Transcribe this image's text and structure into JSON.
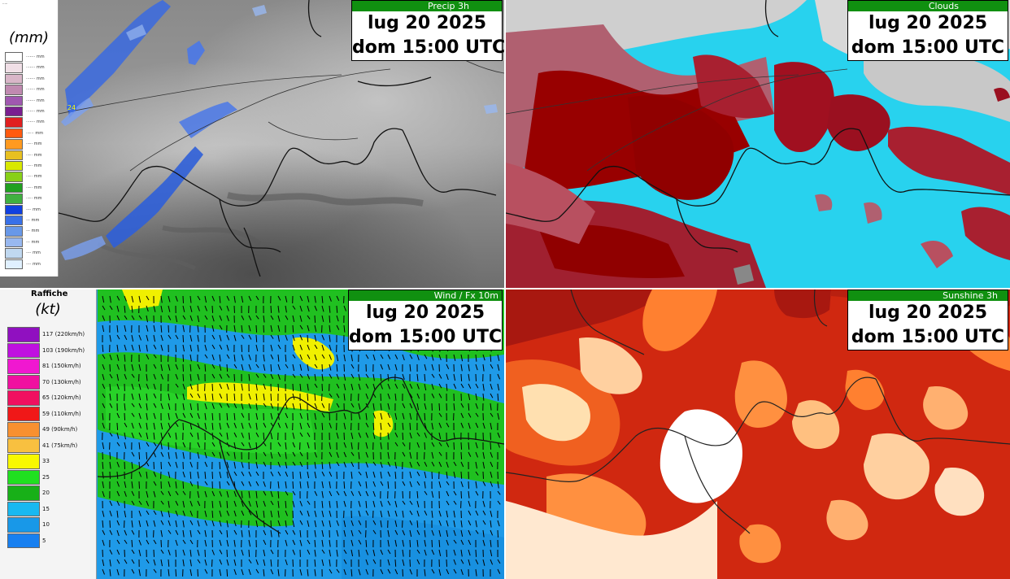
{
  "panels": {
    "precip": {
      "product": "Precip 3h",
      "date": "lug 20 2025",
      "time": "dom 15:00 UTC",
      "unit": "(mm)",
      "marker": "24",
      "legend_note": "·····",
      "legend": [
        {
          "color": "#ffffff",
          "label": "···-··· mm"
        },
        {
          "color": "#f0dfe6",
          "label": "···-··· mm"
        },
        {
          "color": "#d9b6c8",
          "label": "···-··· mm"
        },
        {
          "color": "#c08ab0",
          "label": "···-··· mm"
        },
        {
          "color": "#a058b0",
          "label": "···-··· mm"
        },
        {
          "color": "#7a1f90",
          "label": "···-··· mm"
        },
        {
          "color": "#e02020",
          "label": "···-··· mm"
        },
        {
          "color": "#ff5a10",
          "label": "··-··· mm"
        },
        {
          "color": "#ff9a20",
          "label": "··-·· mm"
        },
        {
          "color": "#e8c020",
          "label": "··-·· mm"
        },
        {
          "color": "#d8e800",
          "label": "··-·· mm"
        },
        {
          "color": "#88d018",
          "label": "··-·· mm"
        },
        {
          "color": "#20a020",
          "label": "··-·· mm"
        },
        {
          "color": "#40b040",
          "label": "··-·· mm"
        },
        {
          "color": "#1040e0",
          "label": "·-·· mm"
        },
        {
          "color": "#3870e8",
          "label": "·-· mm"
        },
        {
          "color": "#6898e8",
          "label": "·-· mm"
        },
        {
          "color": "#98b8f0",
          "label": "·-· mm"
        },
        {
          "color": "#c0d8f0",
          "label": "·-·· mm"
        },
        {
          "color": "#e0f0ff",
          "label": "·-·· mm"
        }
      ]
    },
    "clouds": {
      "product": "Clouds",
      "date": "lug 20 2025",
      "time": "dom 15:00 UTC"
    },
    "wind": {
      "product": "Wind / Fx 10m",
      "date": "lug 20 2025",
      "time": "dom 15:00 UTC",
      "legend_title": "Raffiche",
      "unit": "(kt)",
      "legend": [
        {
          "color": "#9010c0",
          "label": "117 (220km/h)"
        },
        {
          "color": "#c010e0",
          "label": "103 (190km/h)"
        },
        {
          "color": "#f018d0",
          "label": "81 (150km/h)"
        },
        {
          "color": "#f010a0",
          "label": "70 (130km/h)"
        },
        {
          "color": "#f01060",
          "label": "65 (120km/h)"
        },
        {
          "color": "#f01818",
          "label": "59 (110km/h)"
        },
        {
          "color": "#f89030",
          "label": "49 (90km/h)"
        },
        {
          "color": "#f8c040",
          "label": "41 (75km/h)"
        },
        {
          "color": "#f8f800",
          "label": "33"
        },
        {
          "color": "#20e020",
          "label": "25"
        },
        {
          "color": "#18b018",
          "label": "20"
        },
        {
          "color": "#18b8f0",
          "label": "15"
        },
        {
          "color": "#1898e8",
          "label": "10"
        },
        {
          "color": "#1880f0",
          "label": "5"
        }
      ]
    },
    "sunshine": {
      "product": "Sunshine 3h",
      "date": "lug 20 2025",
      "time": "dom 15:00 UTC"
    }
  }
}
